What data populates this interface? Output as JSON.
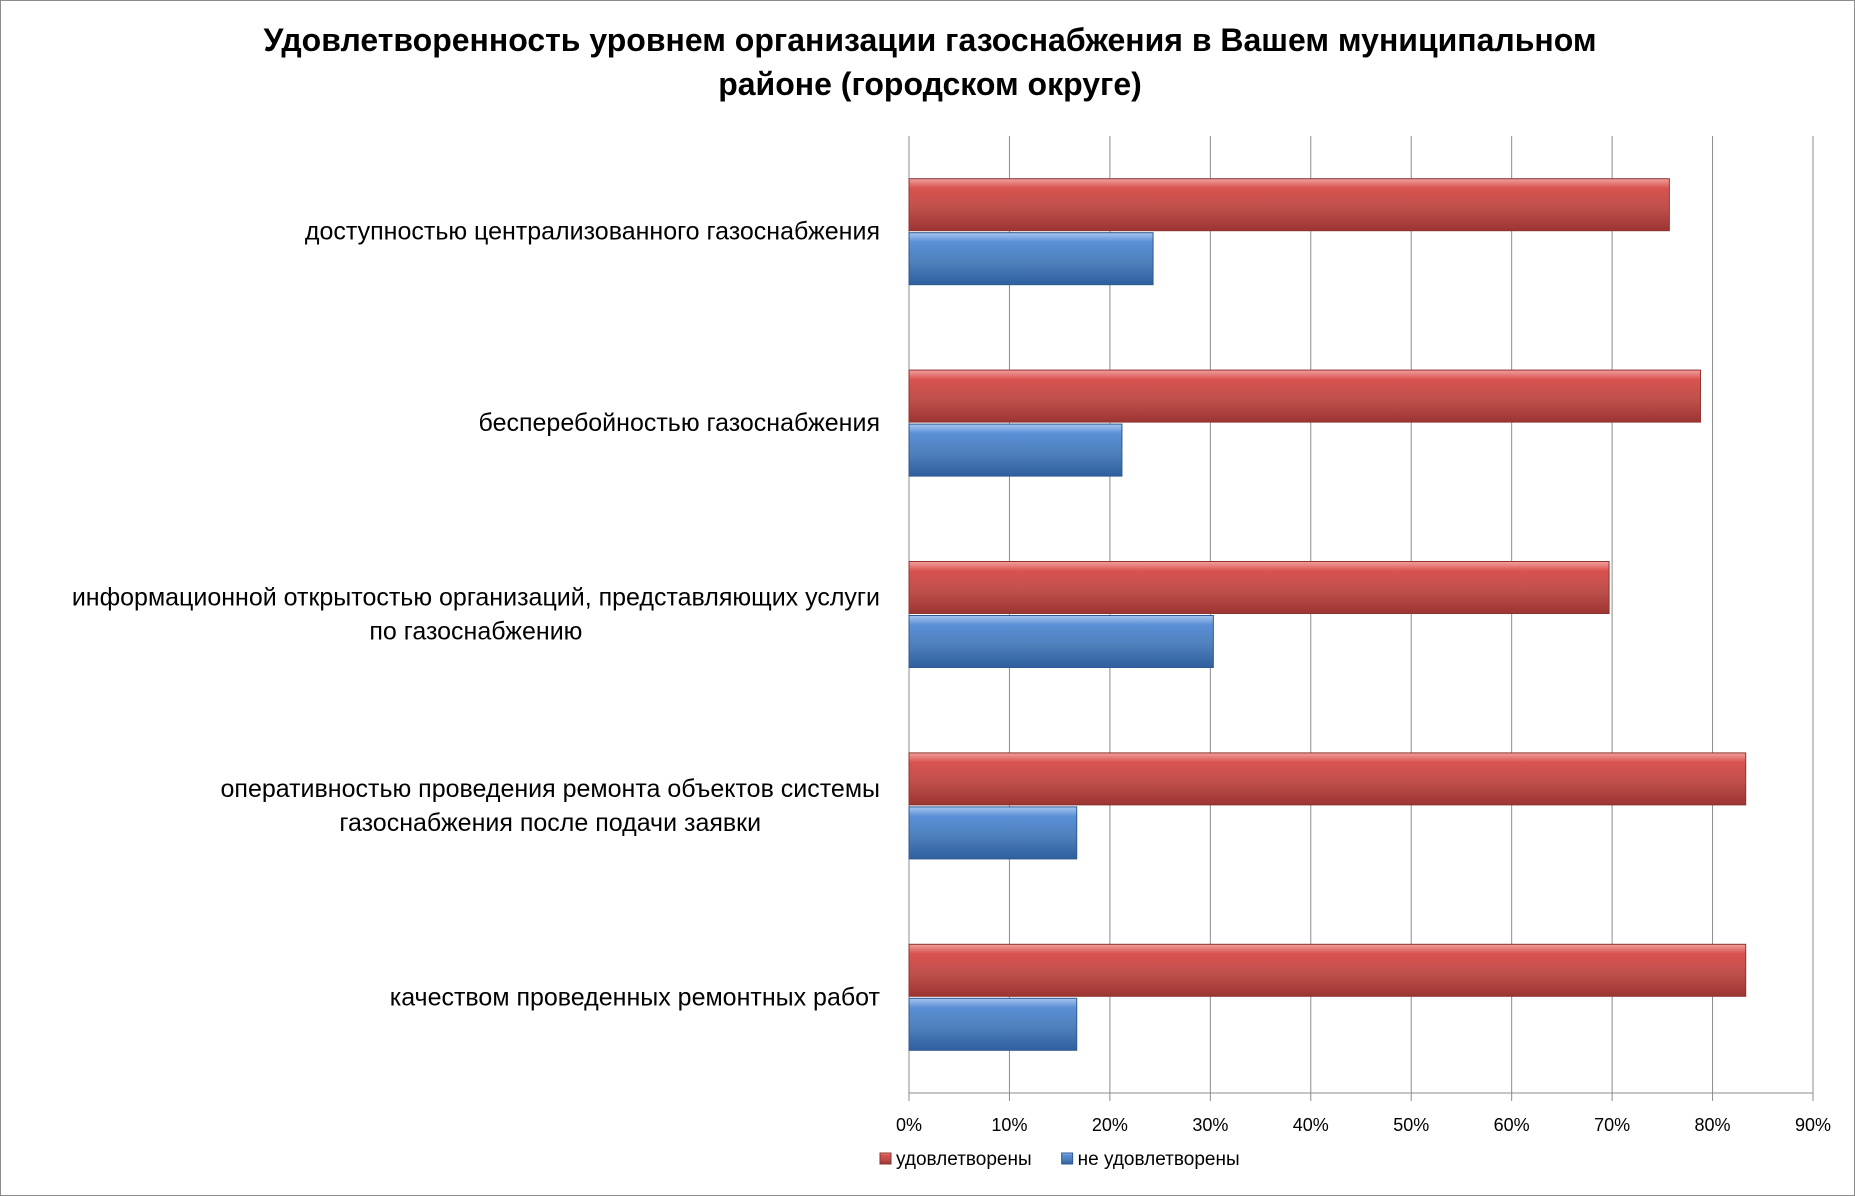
{
  "chart_data": {
    "type": "bar",
    "orientation": "horizontal",
    "title": "Удовлетворенность уровнем организации газоснабжения в Вашем муниципальном районе (городском округе)",
    "title_lines": [
      "Удовлетворенность уровнем организации газоснабжения в Вашем муниципальном",
      "районе (городском округе)"
    ],
    "categories": [
      [
        "доступностью централизованного газоснабжения"
      ],
      [
        "бесперебойностью  газоснабжения"
      ],
      [
        "информационной открытостью организаций, представляющих услуги",
        "по газоснабжению"
      ],
      [
        "оперативностью проведения ремонта объектов системы",
        "газоснабжения после подачи заявки"
      ],
      [
        "качеством проведенных ремонтных работ"
      ]
    ],
    "series": [
      {
        "name": "удовлетворены",
        "color": "#c0504d",
        "values": [
          75.7,
          78.8,
          69.7,
          83.3,
          83.3
        ]
      },
      {
        "name": "не удовлетворены",
        "color": "#4f81bd",
        "values": [
          24.3,
          21.2,
          30.3,
          16.7,
          16.7
        ]
      }
    ],
    "xlim": [
      0,
      90
    ],
    "x_ticks": [
      "0%",
      "10%",
      "20%",
      "30%",
      "40%",
      "50%",
      "60%",
      "70%",
      "80%",
      "90%"
    ],
    "grid": "vertical",
    "legend": "bottom"
  }
}
